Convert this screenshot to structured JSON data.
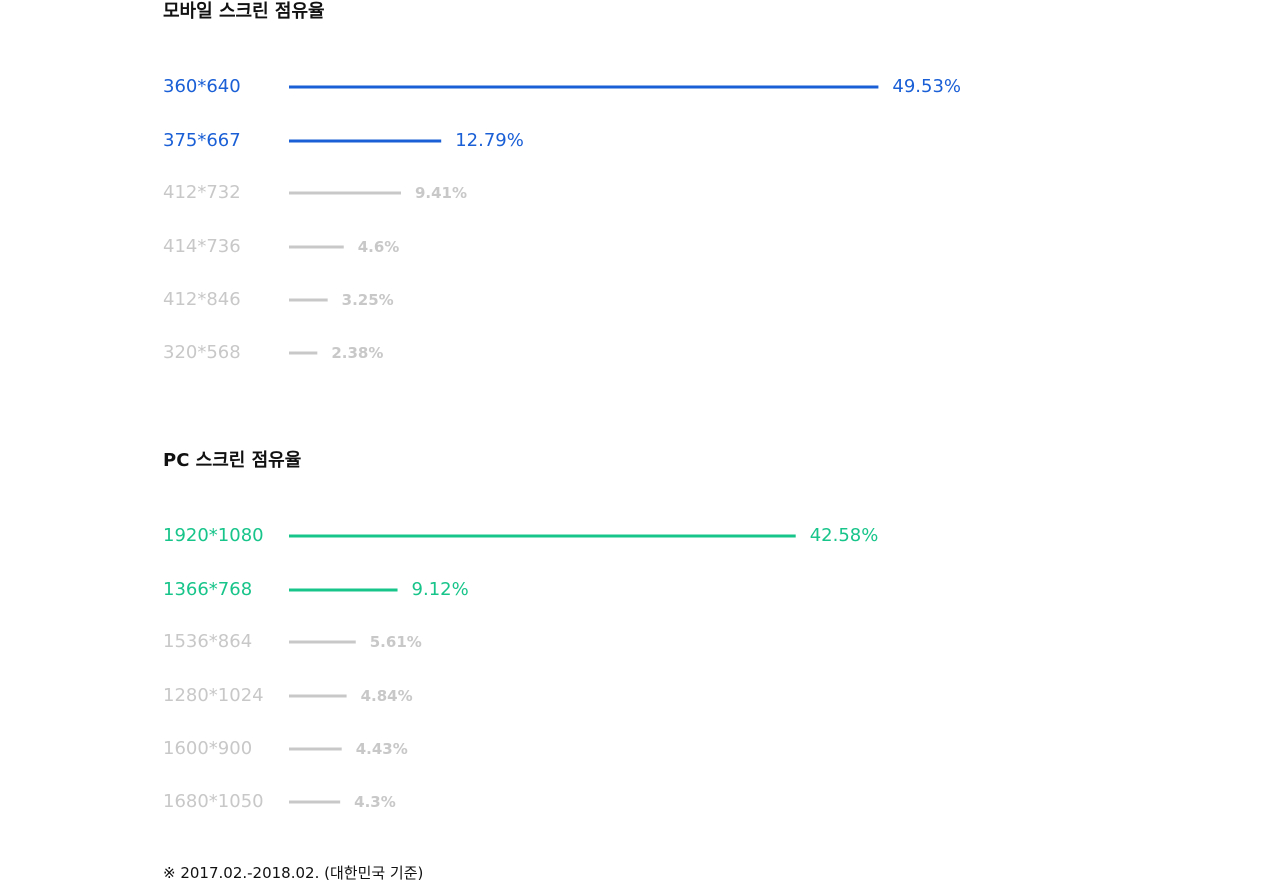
{
  "colors": {
    "mobile_accent": "#1a5fd6",
    "pc_accent": "#17c48a",
    "muted": "#c8c8c8",
    "title": "#111111"
  },
  "mobile": {
    "title": "모바일 스크린 점유율"
  },
  "pc": {
    "title": "PC 스크린 점유율"
  },
  "footnote": "※ 2017.02.-2018.02. (대한민국 기준)",
  "chart_data": [
    {
      "type": "bar",
      "orientation": "horizontal",
      "title": "모바일 스크린 점유율",
      "unit": "%",
      "highlight_count": 2,
      "categories": [
        "360*640",
        "375*667",
        "412*732",
        "414*736",
        "412*846",
        "320*568"
      ],
      "values": [
        49.53,
        12.79,
        9.41,
        4.6,
        3.25,
        2.38
      ],
      "value_labels": [
        "49.53%",
        "12.79%",
        "9.41%",
        "4.6%",
        "3.25%",
        "2.38%"
      ],
      "accent": "#1a5fd6"
    },
    {
      "type": "bar",
      "orientation": "horizontal",
      "title": "PC 스크린 점유율",
      "unit": "%",
      "highlight_count": 2,
      "categories": [
        "1920*1080",
        "1366*768",
        "1536*864",
        "1280*1024",
        "1600*900",
        "1680*1050"
      ],
      "values": [
        42.58,
        9.12,
        5.61,
        4.84,
        4.43,
        4.3
      ],
      "value_labels": [
        "42.58%",
        "9.12%",
        "5.61%",
        "4.84%",
        "4.43%",
        "4.3%"
      ],
      "accent": "#17c48a"
    }
  ]
}
